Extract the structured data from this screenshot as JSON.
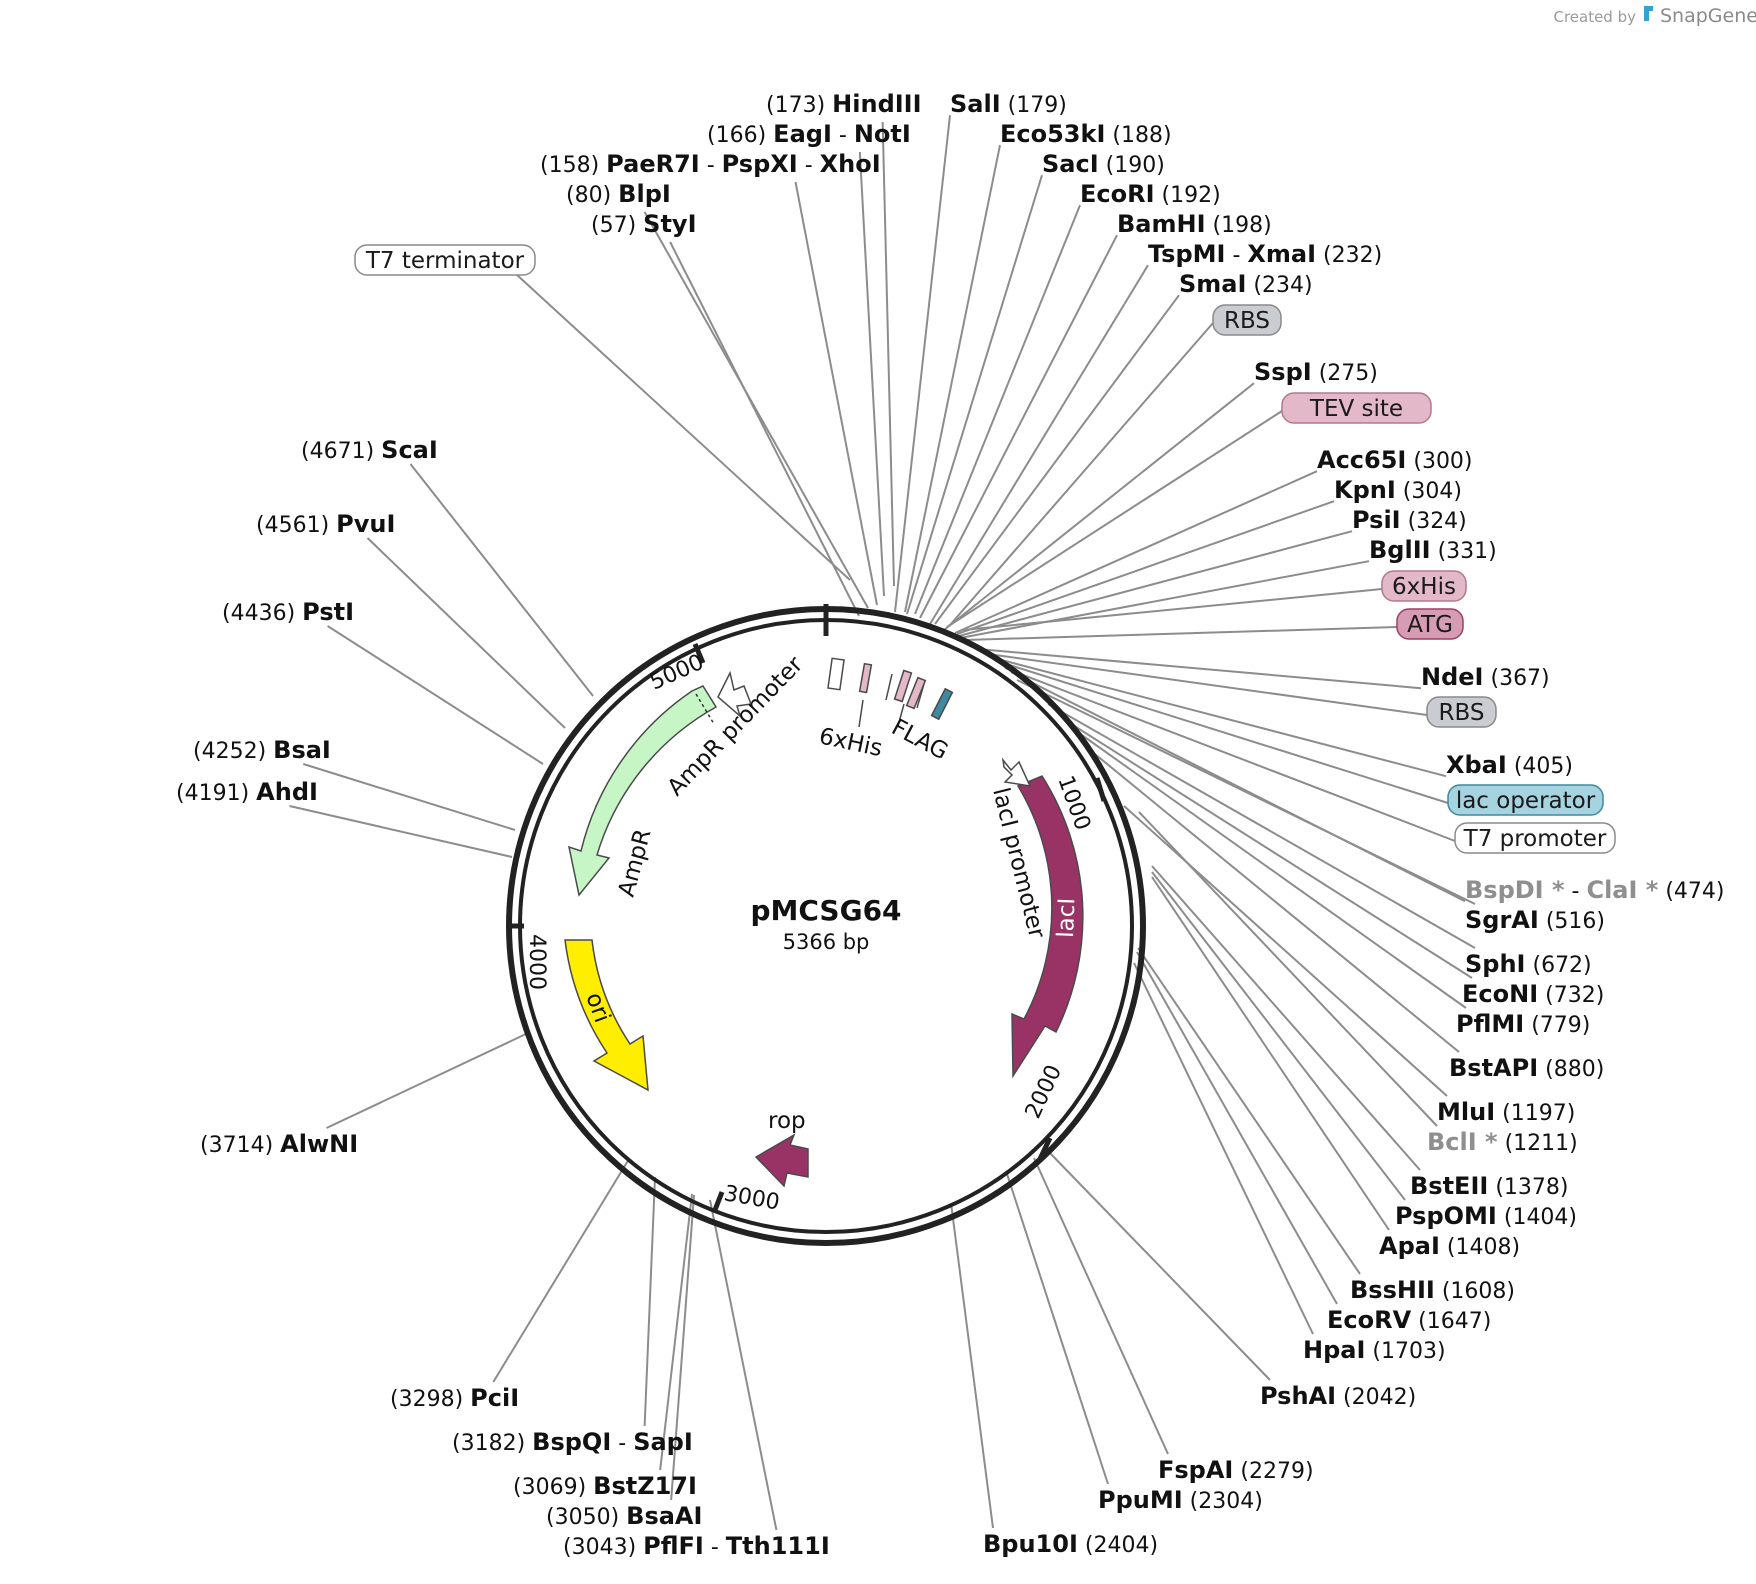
{
  "header": {
    "created_by": "Created by",
    "brand": "SnapGene",
    "brand_color": "#35a2d4"
  },
  "plasmid": {
    "name": "pMCSG64",
    "length": "5366 bp",
    "total_bp": 5366
  },
  "ticks": [
    "1000",
    "2000",
    "3000",
    "4000",
    "5000"
  ],
  "sites": [
    {
      "parts": [
        {
          "name": "HindIII"
        }
      ],
      "position": "(173)"
    },
    {
      "parts": [
        {
          "name": "EagI"
        },
        {
          "name": "NotI"
        }
      ],
      "position": "(166)"
    },
    {
      "parts": [
        {
          "name": "PaeR7I"
        },
        {
          "name": "PspXI"
        },
        {
          "name": "XhoI"
        }
      ],
      "position": "(158)"
    },
    {
      "parts": [
        {
          "name": "BlpI"
        }
      ],
      "position": "(80)"
    },
    {
      "parts": [
        {
          "name": "StyI"
        }
      ],
      "position": "(57)"
    },
    {
      "parts": [
        {
          "name": "SalI"
        }
      ],
      "position": "(179)"
    },
    {
      "parts": [
        {
          "name": "Eco53kI"
        }
      ],
      "position": "(188)"
    },
    {
      "parts": [
        {
          "name": "SacI"
        }
      ],
      "position": "(190)"
    },
    {
      "parts": [
        {
          "name": "EcoRI"
        }
      ],
      "position": "(192)"
    },
    {
      "parts": [
        {
          "name": "BamHI"
        }
      ],
      "position": "(198)"
    },
    {
      "parts": [
        {
          "name": "TspMI"
        },
        {
          "name": "XmaI"
        }
      ],
      "position": "(232)"
    },
    {
      "parts": [
        {
          "name": "SmaI"
        }
      ],
      "position": "(234)"
    },
    {
      "parts": [
        {
          "name": "SspI"
        }
      ],
      "position": "(275)"
    },
    {
      "parts": [
        {
          "name": "Acc65I"
        }
      ],
      "position": "(300)"
    },
    {
      "parts": [
        {
          "name": "KpnI"
        }
      ],
      "position": "(304)"
    },
    {
      "parts": [
        {
          "name": "PsiI"
        }
      ],
      "position": "(324)"
    },
    {
      "parts": [
        {
          "name": "BglII"
        }
      ],
      "position": "(331)"
    },
    {
      "parts": [
        {
          "name": "NdeI"
        }
      ],
      "position": "(367)"
    },
    {
      "parts": [
        {
          "name": "XbaI"
        }
      ],
      "position": "(405)"
    },
    {
      "parts": [
        {
          "name": "BspDI",
          "star": true
        },
        {
          "name": "ClaI",
          "star": true
        }
      ],
      "position": "(474)"
    },
    {
      "parts": [
        {
          "name": "SgrAI"
        }
      ],
      "position": "(516)"
    },
    {
      "parts": [
        {
          "name": "SphI"
        }
      ],
      "position": "(672)"
    },
    {
      "parts": [
        {
          "name": "EcoNI"
        }
      ],
      "position": "(732)"
    },
    {
      "parts": [
        {
          "name": "PflMI"
        }
      ],
      "position": "(779)"
    },
    {
      "parts": [
        {
          "name": "BstAPI"
        }
      ],
      "position": "(880)"
    },
    {
      "parts": [
        {
          "name": "MluI"
        }
      ],
      "position": "(1197)"
    },
    {
      "parts": [
        {
          "name": "BclI",
          "star": true
        }
      ],
      "position": "(1211)"
    },
    {
      "parts": [
        {
          "name": "BstEII"
        }
      ],
      "position": "(1378)"
    },
    {
      "parts": [
        {
          "name": "PspOMI"
        }
      ],
      "position": "(1404)"
    },
    {
      "parts": [
        {
          "name": "ApaI"
        }
      ],
      "position": "(1408)"
    },
    {
      "parts": [
        {
          "name": "BssHII"
        }
      ],
      "position": "(1608)"
    },
    {
      "parts": [
        {
          "name": "EcoRV"
        }
      ],
      "position": "(1647)"
    },
    {
      "parts": [
        {
          "name": "HpaI"
        }
      ],
      "position": "(1703)"
    },
    {
      "parts": [
        {
          "name": "PshAI"
        }
      ],
      "position": "(2042)"
    },
    {
      "parts": [
        {
          "name": "FspAI"
        }
      ],
      "position": "(2279)"
    },
    {
      "parts": [
        {
          "name": "PpuMI"
        }
      ],
      "position": "(2304)"
    },
    {
      "parts": [
        {
          "name": "Bpu10I"
        }
      ],
      "position": "(2404)"
    },
    {
      "parts": [
        {
          "name": "PciI"
        }
      ],
      "position": "(3298)"
    },
    {
      "parts": [
        {
          "name": "BspQI"
        },
        {
          "name": "SapI"
        }
      ],
      "position": "(3182)"
    },
    {
      "parts": [
        {
          "name": "BstZ17I"
        }
      ],
      "position": "(3069)"
    },
    {
      "parts": [
        {
          "name": "BsaAI"
        }
      ],
      "position": "(3050)"
    },
    {
      "parts": [
        {
          "name": "PflFI"
        },
        {
          "name": "Tth111I"
        }
      ],
      "position": "(3043)"
    },
    {
      "parts": [
        {
          "name": "AlwNI"
        }
      ],
      "position": "(3714)"
    },
    {
      "parts": [
        {
          "name": "AhdI"
        }
      ],
      "position": "(4191)"
    },
    {
      "parts": [
        {
          "name": "BsaI"
        }
      ],
      "position": "(4252)"
    },
    {
      "parts": [
        {
          "name": "PstI"
        }
      ],
      "position": "(4436)"
    },
    {
      "parts": [
        {
          "name": "PvuI"
        }
      ],
      "position": "(4561)"
    },
    {
      "parts": [
        {
          "name": "ScaI"
        }
      ],
      "position": "(4671)"
    }
  ],
  "boxes": [
    {
      "text": "T7 terminator",
      "fill": "#ffffff",
      "stroke": "#8a8a8a"
    },
    {
      "text": "RBS",
      "fill": "#c9ccd0",
      "stroke": "#8a8a8a"
    },
    {
      "text": "TEV site",
      "fill": "#e3b8c8",
      "stroke": "#b2798f"
    },
    {
      "text": "6xHis",
      "fill": "#e3b8c8",
      "stroke": "#b2798f"
    },
    {
      "text": "ATG",
      "fill": "#d69cb4",
      "stroke": "#9e3f66"
    },
    {
      "text": "RBS",
      "fill": "#c9ccd0",
      "stroke": "#8a8a8a"
    },
    {
      "text": "lac operator",
      "fill": "#a6d3e0",
      "stroke": "#3f8aa0"
    },
    {
      "text": "T7 promoter",
      "fill": "#ffffff",
      "stroke": "#8a8a8a"
    }
  ],
  "features": {
    "AmpR": {
      "label": "AmpR",
      "color": "#c6f5c6"
    },
    "AmpR_promoter": {
      "label": "AmpR promoter",
      "color": "#ffffff"
    },
    "ori": {
      "label": "ori",
      "color": "#ffee00"
    },
    "lacI": {
      "label": "lacI",
      "color": "#993366"
    },
    "lacI_promoter": {
      "label": "lacI promoter",
      "color": "#ffffff"
    },
    "rop": {
      "label": "rop",
      "color": "#993366"
    },
    "hisTag": {
      "label": "6xHis",
      "color": "#e3b8c8"
    },
    "flag": {
      "label": "FLAG",
      "color": "#e3b8c8"
    },
    "lacOp": {
      "color": "#3f8aa0"
    }
  }
}
